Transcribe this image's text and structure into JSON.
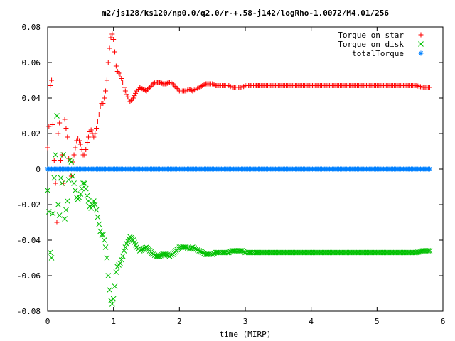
{
  "chart_data": {
    "type": "scatter",
    "title": "m2/js128/ks120/np0.0/q2.0/r-+.58-j142/logRho-1.0072/M4.01/256",
    "xlabel": "time (MIRP)",
    "ylabel": "",
    "xlim": [
      0,
      6
    ],
    "ylim": [
      -0.08,
      0.08
    ],
    "xticks": [
      0,
      1,
      2,
      3,
      4,
      5,
      6
    ],
    "yticks": [
      -0.08,
      -0.06,
      -0.04,
      -0.02,
      0,
      0.02,
      0.04,
      0.06,
      0.08
    ],
    "xtick_labels": [
      "0",
      "1",
      "2",
      "3",
      "4",
      "5",
      "6"
    ],
    "ytick_labels": [
      "-0.08",
      "-0.06",
      "-0.04",
      "-0.02",
      "0",
      "0.02",
      "0.04",
      "0.06",
      "0.08"
    ],
    "grid": false,
    "legend_position": "top-right",
    "series": [
      {
        "name": "Torque on star",
        "marker": "+",
        "color": "#ff0000",
        "x": [
          0.0,
          0.02,
          0.04,
          0.06,
          0.08,
          0.1,
          0.12,
          0.14,
          0.16,
          0.18,
          0.2,
          0.22,
          0.24,
          0.26,
          0.28,
          0.3,
          0.32,
          0.34,
          0.36,
          0.38,
          0.4,
          0.42,
          0.44,
          0.46,
          0.48,
          0.5,
          0.52,
          0.54,
          0.56,
          0.58,
          0.6,
          0.62,
          0.64,
          0.66,
          0.68,
          0.7,
          0.72,
          0.74,
          0.76,
          0.78,
          0.8,
          0.82,
          0.84,
          0.86,
          0.88,
          0.9,
          0.92,
          0.94,
          0.96,
          0.98,
          1.0,
          1.02,
          1.04,
          1.06,
          1.08,
          1.1,
          1.12,
          1.14,
          1.16,
          1.18,
          1.2,
          1.25,
          1.3,
          1.35,
          1.4,
          1.45,
          1.5,
          1.55,
          1.6,
          1.65,
          1.7,
          1.75,
          1.8,
          1.85,
          1.9,
          1.95,
          2.0,
          2.05,
          2.1,
          2.15,
          2.2,
          2.25,
          2.3,
          2.35,
          2.4,
          2.45,
          2.5,
          2.55,
          2.6,
          2.65,
          2.7,
          2.75,
          2.8,
          2.85,
          2.9,
          2.95,
          3.0,
          3.05,
          3.1,
          3.15,
          3.2,
          3.3,
          3.4,
          3.5,
          3.6,
          3.7,
          3.8,
          3.9,
          4.0,
          4.1,
          4.2,
          4.3,
          4.4,
          4.5,
          4.6,
          4.7,
          4.8,
          4.9,
          5.0,
          5.1,
          5.2,
          5.3,
          5.4,
          5.5,
          5.6,
          5.7,
          5.8
        ],
        "y": [
          0.012,
          0.024,
          0.047,
          0.05,
          0.025,
          0.005,
          -0.008,
          -0.03,
          0.02,
          0.026,
          0.005,
          0.008,
          -0.008,
          0.028,
          0.023,
          0.018,
          0.006,
          -0.005,
          -0.004,
          0.004,
          0.008,
          0.012,
          0.016,
          0.017,
          0.016,
          0.014,
          0.011,
          0.008,
          0.008,
          0.011,
          0.015,
          0.018,
          0.021,
          0.022,
          0.02,
          0.018,
          0.02,
          0.023,
          0.027,
          0.031,
          0.035,
          0.037,
          0.037,
          0.04,
          0.044,
          0.05,
          0.06,
          0.068,
          0.074,
          0.076,
          0.073,
          0.066,
          0.058,
          0.055,
          0.054,
          0.053,
          0.051,
          0.049,
          0.046,
          0.044,
          0.042,
          0.038,
          0.04,
          0.044,
          0.046,
          0.045,
          0.044,
          0.046,
          0.048,
          0.049,
          0.049,
          0.048,
          0.048,
          0.049,
          0.048,
          0.046,
          0.044,
          0.044,
          0.044,
          0.045,
          0.044,
          0.045,
          0.046,
          0.047,
          0.048,
          0.048,
          0.048,
          0.047,
          0.047,
          0.047,
          0.047,
          0.047,
          0.046,
          0.046,
          0.046,
          0.046,
          0.047,
          0.047,
          0.047,
          0.047,
          0.047,
          0.047,
          0.047,
          0.047,
          0.047,
          0.047,
          0.047,
          0.047,
          0.047,
          0.047,
          0.047,
          0.047,
          0.047,
          0.047,
          0.047,
          0.047,
          0.047,
          0.047,
          0.047,
          0.047,
          0.047,
          0.047,
          0.047,
          0.047,
          0.047,
          0.046,
          0.046
        ]
      },
      {
        "name": "Torque on disk",
        "marker": "x",
        "color": "#00c000",
        "x": [
          0.0,
          0.02,
          0.04,
          0.06,
          0.08,
          0.1,
          0.12,
          0.14,
          0.16,
          0.18,
          0.2,
          0.22,
          0.24,
          0.26,
          0.28,
          0.3,
          0.32,
          0.34,
          0.36,
          0.38,
          0.4,
          0.42,
          0.44,
          0.46,
          0.48,
          0.5,
          0.52,
          0.54,
          0.56,
          0.58,
          0.6,
          0.62,
          0.64,
          0.66,
          0.68,
          0.7,
          0.72,
          0.74,
          0.76,
          0.78,
          0.8,
          0.82,
          0.84,
          0.86,
          0.88,
          0.9,
          0.92,
          0.94,
          0.96,
          0.98,
          1.0,
          1.02,
          1.04,
          1.06,
          1.08,
          1.1,
          1.12,
          1.14,
          1.16,
          1.18,
          1.2,
          1.25,
          1.3,
          1.35,
          1.4,
          1.45,
          1.5,
          1.55,
          1.6,
          1.65,
          1.7,
          1.75,
          1.8,
          1.85,
          1.9,
          1.95,
          2.0,
          2.05,
          2.1,
          2.15,
          2.2,
          2.25,
          2.3,
          2.35,
          2.4,
          2.45,
          2.5,
          2.55,
          2.6,
          2.65,
          2.7,
          2.75,
          2.8,
          2.85,
          2.9,
          2.95,
          3.0,
          3.05,
          3.1,
          3.15,
          3.2,
          3.3,
          3.4,
          3.5,
          3.6,
          3.7,
          3.8,
          3.9,
          4.0,
          4.1,
          4.2,
          4.3,
          4.4,
          4.5,
          4.6,
          4.7,
          4.8,
          4.9,
          5.0,
          5.1,
          5.2,
          5.3,
          5.4,
          5.5,
          5.6,
          5.7,
          5.8
        ],
        "y": [
          -0.012,
          -0.024,
          -0.047,
          -0.05,
          -0.025,
          -0.005,
          0.008,
          0.03,
          -0.02,
          -0.026,
          -0.005,
          -0.008,
          0.008,
          -0.028,
          -0.023,
          -0.018,
          -0.006,
          0.005,
          0.004,
          -0.004,
          -0.008,
          -0.012,
          -0.016,
          -0.017,
          -0.016,
          -0.014,
          -0.011,
          -0.008,
          -0.008,
          -0.011,
          -0.015,
          -0.018,
          -0.021,
          -0.022,
          -0.02,
          -0.018,
          -0.02,
          -0.023,
          -0.027,
          -0.031,
          -0.035,
          -0.037,
          -0.037,
          -0.04,
          -0.044,
          -0.05,
          -0.06,
          -0.068,
          -0.074,
          -0.076,
          -0.073,
          -0.066,
          -0.058,
          -0.055,
          -0.054,
          -0.053,
          -0.051,
          -0.049,
          -0.046,
          -0.044,
          -0.042,
          -0.038,
          -0.04,
          -0.044,
          -0.046,
          -0.045,
          -0.044,
          -0.046,
          -0.048,
          -0.049,
          -0.049,
          -0.048,
          -0.048,
          -0.049,
          -0.048,
          -0.046,
          -0.044,
          -0.044,
          -0.044,
          -0.045,
          -0.044,
          -0.045,
          -0.046,
          -0.047,
          -0.048,
          -0.048,
          -0.048,
          -0.047,
          -0.047,
          -0.047,
          -0.047,
          -0.047,
          -0.046,
          -0.046,
          -0.046,
          -0.046,
          -0.047,
          -0.047,
          -0.047,
          -0.047,
          -0.047,
          -0.047,
          -0.047,
          -0.047,
          -0.047,
          -0.047,
          -0.047,
          -0.047,
          -0.047,
          -0.047,
          -0.047,
          -0.047,
          -0.047,
          -0.047,
          -0.047,
          -0.047,
          -0.047,
          -0.047,
          -0.047,
          -0.047,
          -0.047,
          -0.047,
          -0.047,
          -0.047,
          -0.047,
          -0.046,
          -0.046
        ]
      },
      {
        "name": "totalTorque",
        "marker": "*",
        "color": "#0080ff",
        "x": [
          0.0,
          0.1,
          0.2,
          0.3,
          0.4,
          0.5,
          0.6,
          0.7,
          0.8,
          0.9,
          1.0,
          1.1,
          1.2,
          1.3,
          1.4,
          1.5,
          1.6,
          1.7,
          1.8,
          1.9,
          2.0,
          2.1,
          2.2,
          2.3,
          2.4,
          2.5,
          2.6,
          2.7,
          2.8,
          2.9,
          3.0,
          3.1,
          3.2,
          3.3,
          3.4,
          3.5,
          3.6,
          3.7,
          3.8,
          3.9,
          4.0,
          4.1,
          4.2,
          4.3,
          4.4,
          4.5,
          4.6,
          4.7,
          4.8,
          4.9,
          5.0,
          5.1,
          5.2,
          5.3,
          5.4,
          5.5,
          5.6,
          5.7,
          5.8
        ],
        "y": [
          0,
          0,
          0,
          0,
          0,
          0,
          0,
          0,
          0,
          0,
          0,
          0,
          0,
          0,
          0,
          0,
          0,
          0,
          0,
          0,
          0,
          0,
          0,
          0,
          0,
          0,
          0,
          0,
          0,
          0,
          0,
          0,
          0,
          0,
          0,
          0,
          0,
          0,
          0,
          0,
          0,
          0,
          0,
          0,
          0,
          0,
          0,
          0,
          0,
          0,
          0,
          0,
          0,
          0,
          0,
          0,
          0,
          0,
          0
        ]
      }
    ]
  }
}
